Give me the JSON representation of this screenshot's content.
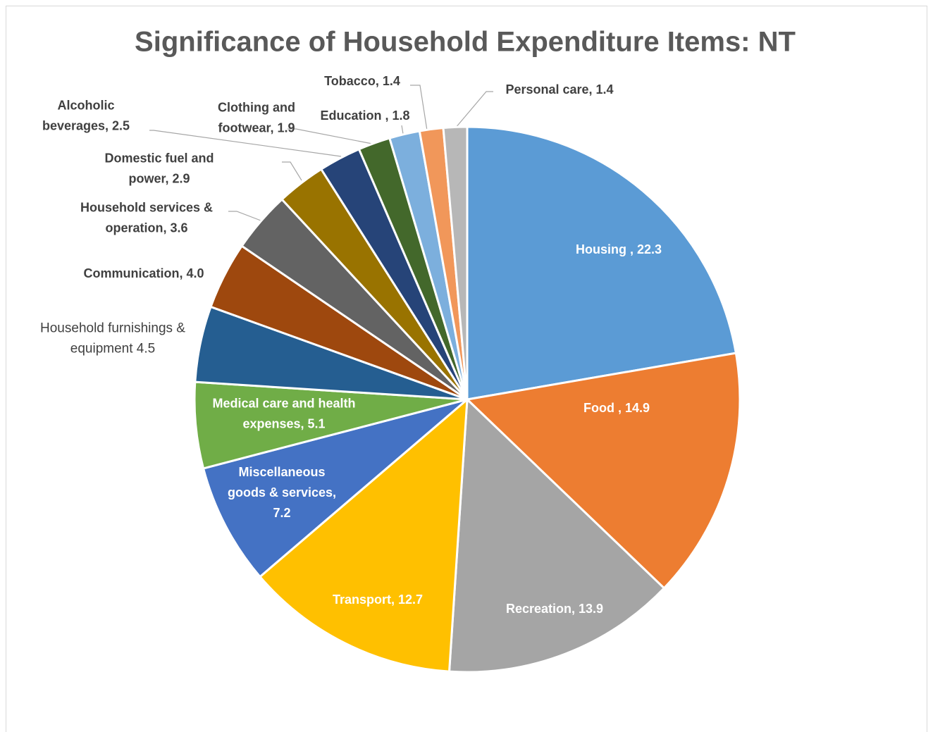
{
  "chart_data": {
    "type": "pie",
    "title": "Significance of Household Expenditure Items: NT",
    "values": [
      22.3,
      14.9,
      13.9,
      12.7,
      7.2,
      5.1,
      4.5,
      4.0,
      3.6,
      2.9,
      2.5,
      1.9,
      1.8,
      1.4,
      1.4
    ],
    "value_labels": [
      "Housing , 22.3",
      "Food , 14.9",
      "Recreation, 13.9",
      "Transport, 12.7",
      "Miscellaneous\ngoods & services,\n7.2",
      "Medical care and health\nexpenses, 5.1",
      "Household furnishings &\nequipment  4.5",
      "Communication, 4.0",
      "Household services &\noperation, 3.6",
      "Domestic fuel and\npower, 2.9",
      "Alcoholic\nbeverages, 2.5",
      "Clothing and\nfootwear, 1.9",
      "Education , 1.8",
      "Tobacco, 1.4",
      "Personal care, 1.4"
    ],
    "colors": [
      "#5b9bd5",
      "#ed7d31",
      "#a5a5a5",
      "#ffc000",
      "#4472c4",
      "#70ad47",
      "#255e91",
      "#9e480e",
      "#636363",
      "#997300",
      "#264478",
      "#43682b",
      "#7cafdd",
      "#f1975a",
      "#b7b7b7"
    ]
  }
}
